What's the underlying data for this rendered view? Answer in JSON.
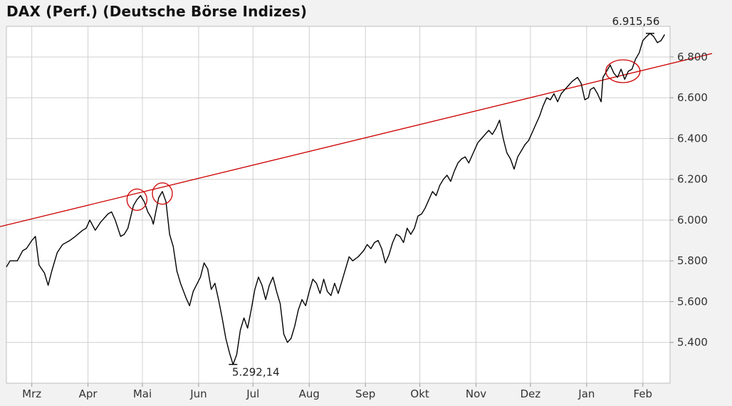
{
  "chart_data": {
    "type": "line",
    "title": "DAX (Perf.) (Deutsche Börse Indizes)",
    "xlabel": "",
    "ylabel": "",
    "x_tick_labels": [
      "Mrz",
      "Apr",
      "Mai",
      "Jun",
      "Jul",
      "Aug",
      "Sep",
      "Okt",
      "Nov",
      "Dez",
      "Jan",
      "Feb"
    ],
    "x_tick_dates": [
      "2010-03-01",
      "2010-04-01",
      "2010-05-01",
      "2010-06-01",
      "2010-07-01",
      "2010-08-01",
      "2010-09-01",
      "2010-10-01",
      "2010-11-01",
      "2010-12-01",
      "2011-01-01",
      "2011-02-01"
    ],
    "y_ticks": [
      5400,
      5600,
      5800,
      6000,
      6200,
      6400,
      6600,
      6800
    ],
    "y_tick_labels": [
      "5.400",
      "5.600",
      "5.800",
      "6.000",
      "6.200",
      "6.400",
      "6.600",
      "6.800"
    ],
    "ylim": [
      5200,
      6950
    ],
    "xlim": [
      "2010-02-15",
      "2011-02-16"
    ],
    "grid": true,
    "colors": {
      "line": "#000000",
      "trend": "#cc0000",
      "grid": "#cfcfcf",
      "plot_bg": "#ffffff",
      "page_bg": "#f2f2f2"
    },
    "series": [
      {
        "points": [
          [
            "2010-02-15",
            5770
          ],
          [
            "2010-02-17",
            5800
          ],
          [
            "2010-02-21",
            5800
          ],
          [
            "2010-02-24",
            5850
          ],
          [
            "2010-02-26",
            5860
          ],
          [
            "2010-03-01",
            5900
          ],
          [
            "2010-03-03",
            5920
          ],
          [
            "2010-03-05",
            5780
          ],
          [
            "2010-03-08",
            5740
          ],
          [
            "2010-03-10",
            5680
          ],
          [
            "2010-03-12",
            5750
          ],
          [
            "2010-03-15",
            5840
          ],
          [
            "2010-03-18",
            5880
          ],
          [
            "2010-03-22",
            5900
          ],
          [
            "2010-03-25",
            5920
          ],
          [
            "2010-03-29",
            5950
          ],
          [
            "2010-03-31",
            5960
          ],
          [
            "2010-04-02",
            6000
          ],
          [
            "2010-04-05",
            5950
          ],
          [
            "2010-04-08",
            5990
          ],
          [
            "2010-04-12",
            6030
          ],
          [
            "2010-04-14",
            6040
          ],
          [
            "2010-04-16",
            6000
          ],
          [
            "2010-04-19",
            5920
          ],
          [
            "2010-04-21",
            5930
          ],
          [
            "2010-04-23",
            5960
          ],
          [
            "2010-04-26",
            6070
          ],
          [
            "2010-04-28",
            6100
          ],
          [
            "2010-04-30",
            6120
          ],
          [
            "2010-05-02",
            6090
          ],
          [
            "2010-05-04",
            6040
          ],
          [
            "2010-05-06",
            6010
          ],
          [
            "2010-05-07",
            5980
          ],
          [
            "2010-05-10",
            6110
          ],
          [
            "2010-05-12",
            6140
          ],
          [
            "2010-05-14",
            6090
          ],
          [
            "2010-05-16",
            5930
          ],
          [
            "2010-05-18",
            5870
          ],
          [
            "2010-05-20",
            5750
          ],
          [
            "2010-05-22",
            5690
          ],
          [
            "2010-05-25",
            5620
          ],
          [
            "2010-05-27",
            5580
          ],
          [
            "2010-05-29",
            5650
          ],
          [
            "2010-06-02",
            5720
          ],
          [
            "2010-06-04",
            5790
          ],
          [
            "2010-06-06",
            5760
          ],
          [
            "2010-06-08",
            5660
          ],
          [
            "2010-06-10",
            5690
          ],
          [
            "2010-06-12",
            5610
          ],
          [
            "2010-06-14",
            5520
          ],
          [
            "2010-06-16",
            5420
          ],
          [
            "2010-06-18",
            5350
          ],
          [
            "2010-06-20",
            5292
          ],
          [
            "2010-06-22",
            5340
          ],
          [
            "2010-06-24",
            5460
          ],
          [
            "2010-06-26",
            5520
          ],
          [
            "2010-06-28",
            5470
          ],
          [
            "2010-06-30",
            5560
          ],
          [
            "2010-07-02",
            5660
          ],
          [
            "2010-07-04",
            5720
          ],
          [
            "2010-07-06",
            5680
          ],
          [
            "2010-07-08",
            5610
          ],
          [
            "2010-07-10",
            5680
          ],
          [
            "2010-07-12",
            5720
          ],
          [
            "2010-07-14",
            5650
          ],
          [
            "2010-07-16",
            5590
          ],
          [
            "2010-07-18",
            5440
          ],
          [
            "2010-07-20",
            5400
          ],
          [
            "2010-07-22",
            5420
          ],
          [
            "2010-07-24",
            5480
          ],
          [
            "2010-07-26",
            5560
          ],
          [
            "2010-07-28",
            5610
          ],
          [
            "2010-07-30",
            5580
          ],
          [
            "2010-08-01",
            5650
          ],
          [
            "2010-08-03",
            5710
          ],
          [
            "2010-08-05",
            5690
          ],
          [
            "2010-08-07",
            5640
          ],
          [
            "2010-08-09",
            5710
          ],
          [
            "2010-08-11",
            5650
          ],
          [
            "2010-08-13",
            5630
          ],
          [
            "2010-08-15",
            5690
          ],
          [
            "2010-08-17",
            5640
          ],
          [
            "2010-08-19",
            5700
          ],
          [
            "2010-08-21",
            5760
          ],
          [
            "2010-08-23",
            5820
          ],
          [
            "2010-08-25",
            5800
          ],
          [
            "2010-08-28",
            5820
          ],
          [
            "2010-08-31",
            5850
          ],
          [
            "2010-09-02",
            5880
          ],
          [
            "2010-09-04",
            5860
          ],
          [
            "2010-09-06",
            5890
          ],
          [
            "2010-09-08",
            5900
          ],
          [
            "2010-09-10",
            5860
          ],
          [
            "2010-09-12",
            5790
          ],
          [
            "2010-09-14",
            5830
          ],
          [
            "2010-09-16",
            5890
          ],
          [
            "2010-09-18",
            5930
          ],
          [
            "2010-09-20",
            5920
          ],
          [
            "2010-09-22",
            5890
          ],
          [
            "2010-09-24",
            5960
          ],
          [
            "2010-09-26",
            5930
          ],
          [
            "2010-09-28",
            5960
          ],
          [
            "2010-09-30",
            6020
          ],
          [
            "2010-10-02",
            6030
          ],
          [
            "2010-10-04",
            6060
          ],
          [
            "2010-10-06",
            6100
          ],
          [
            "2010-10-08",
            6140
          ],
          [
            "2010-10-10",
            6120
          ],
          [
            "2010-10-12",
            6170
          ],
          [
            "2010-10-14",
            6200
          ],
          [
            "2010-10-16",
            6220
          ],
          [
            "2010-10-18",
            6190
          ],
          [
            "2010-10-20",
            6240
          ],
          [
            "2010-10-22",
            6280
          ],
          [
            "2010-10-24",
            6300
          ],
          [
            "2010-10-26",
            6310
          ],
          [
            "2010-10-28",
            6280
          ],
          [
            "2010-10-30",
            6320
          ],
          [
            "2010-11-02",
            6380
          ],
          [
            "2010-11-04",
            6400
          ],
          [
            "2010-11-06",
            6420
          ],
          [
            "2010-11-08",
            6440
          ],
          [
            "2010-11-10",
            6420
          ],
          [
            "2010-11-12",
            6450
          ],
          [
            "2010-11-14",
            6490
          ],
          [
            "2010-11-16",
            6400
          ],
          [
            "2010-11-18",
            6330
          ],
          [
            "2010-11-20",
            6300
          ],
          [
            "2010-11-22",
            6250
          ],
          [
            "2010-11-24",
            6310
          ],
          [
            "2010-11-26",
            6340
          ],
          [
            "2010-11-28",
            6370
          ],
          [
            "2010-11-30",
            6390
          ],
          [
            "2010-12-02",
            6430
          ],
          [
            "2010-12-04",
            6470
          ],
          [
            "2010-12-06",
            6510
          ],
          [
            "2010-12-08",
            6560
          ],
          [
            "2010-12-10",
            6600
          ],
          [
            "2010-12-12",
            6590
          ],
          [
            "2010-12-14",
            6620
          ],
          [
            "2010-12-16",
            6580
          ],
          [
            "2010-12-18",
            6620
          ],
          [
            "2010-12-20",
            6640
          ],
          [
            "2010-12-22",
            6660
          ],
          [
            "2010-12-24",
            6680
          ],
          [
            "2010-12-27",
            6700
          ],
          [
            "2010-12-29",
            6670
          ],
          [
            "2010-12-31",
            6590
          ],
          [
            "2011-01-02",
            6600
          ],
          [
            "2011-01-03",
            6640
          ],
          [
            "2011-01-05",
            6650
          ],
          [
            "2011-01-07",
            6620
          ],
          [
            "2011-01-09",
            6580
          ],
          [
            "2011-01-10",
            6700
          ],
          [
            "2011-01-12",
            6730
          ],
          [
            "2011-01-14",
            6760
          ],
          [
            "2011-01-16",
            6720
          ],
          [
            "2011-01-18",
            6700
          ],
          [
            "2011-01-20",
            6740
          ],
          [
            "2011-01-22",
            6690
          ],
          [
            "2011-01-24",
            6730
          ],
          [
            "2011-01-26",
            6740
          ],
          [
            "2011-01-28",
            6790
          ],
          [
            "2011-01-30",
            6820
          ],
          [
            "2011-02-01",
            6880
          ],
          [
            "2011-02-03",
            6900
          ],
          [
            "2011-02-05",
            6915.56
          ],
          [
            "2011-02-07",
            6900
          ],
          [
            "2011-02-09",
            6870
          ],
          [
            "2011-02-11",
            6880
          ],
          [
            "2011-02-13",
            6910
          ]
        ]
      }
    ],
    "trend_line": {
      "start": [
        "2010-02-15",
        5968
      ],
      "end": [
        "2011-02-16",
        6817
      ]
    },
    "annotations": [
      {
        "label": "6.915,56",
        "date": "2011-02-05",
        "value": 6915.56,
        "position": "above"
      },
      {
        "label": "5.292,14",
        "date": "2010-06-20",
        "value": 5292.14,
        "position": "below"
      }
    ],
    "highlight_circles": [
      {
        "date": "2010-04-28",
        "value": 6100
      },
      {
        "date": "2010-05-12",
        "value": 6130
      },
      {
        "date": "2011-01-21",
        "value": 6730
      }
    ]
  }
}
